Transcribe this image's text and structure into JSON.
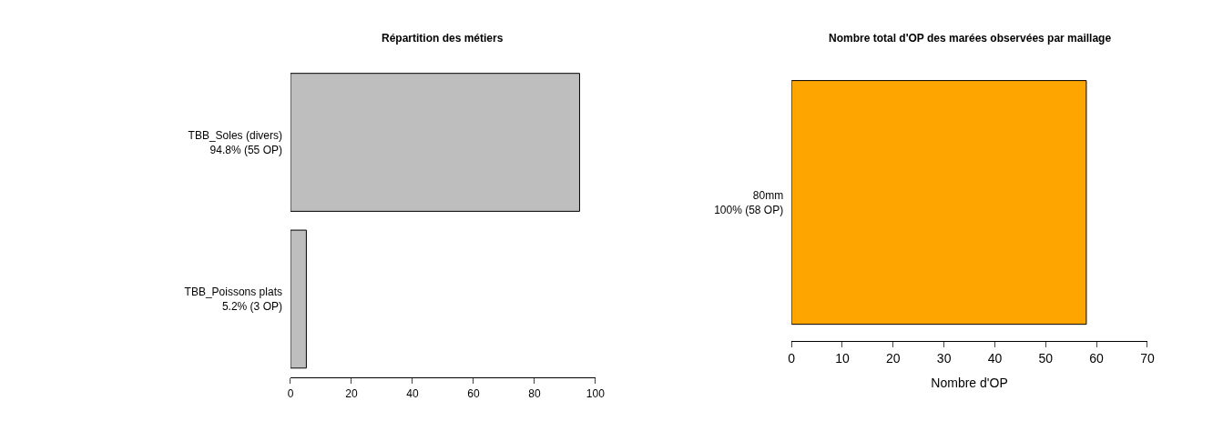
{
  "chart_data": [
    {
      "type": "bar",
      "orientation": "horizontal",
      "title": "Répartition des métiers",
      "categories": [
        "TBB_Soles (divers)\n94.8% (55 OP)",
        "TBB_Poissons plats\n5.2% (3 OP)"
      ],
      "values": [
        94.8,
        5.2
      ],
      "color": "#bebebe",
      "xlim": [
        0,
        100
      ],
      "xticks": [
        0,
        20,
        40,
        60,
        80,
        100
      ]
    },
    {
      "type": "bar",
      "orientation": "horizontal",
      "title": "Nombre total d'OP des marées observées par maillage",
      "categories": [
        "80mm\n100% (58 OP)"
      ],
      "values": [
        58
      ],
      "color": "#ffa500",
      "xlim": [
        0,
        70
      ],
      "xticks": [
        0,
        10,
        20,
        30,
        40,
        50,
        60,
        70
      ],
      "xlabel": "Nombre d'OP"
    }
  ]
}
